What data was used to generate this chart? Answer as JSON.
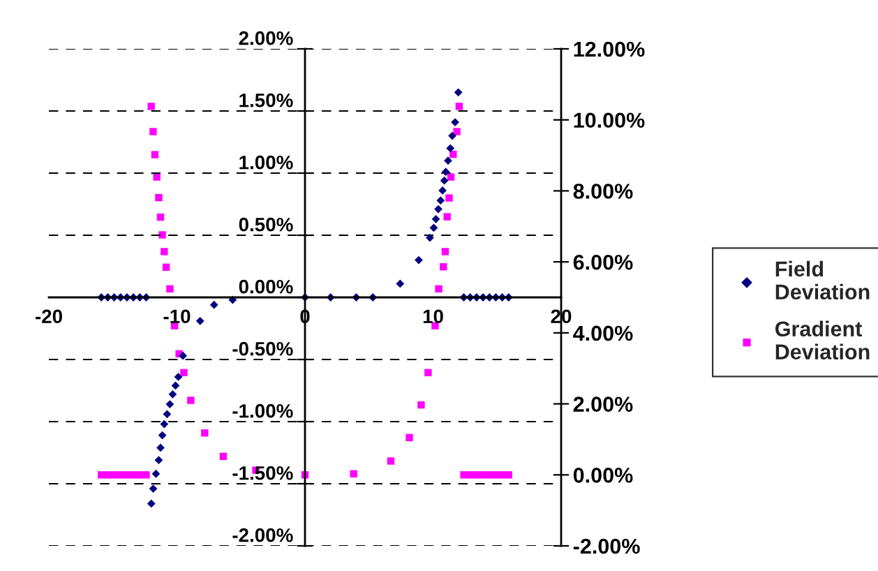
{
  "chart_data": {
    "type": "scatter",
    "xlim": [
      -20,
      20
    ],
    "xticks": [
      -20,
      -10,
      0,
      10,
      20
    ],
    "ylim": [
      -2,
      2
    ],
    "yticks": [
      {
        "value": -2,
        "label": "-2.00%"
      },
      {
        "value": -1.5,
        "label": "-1.50%"
      },
      {
        "value": -1,
        "label": "-1.00%"
      },
      {
        "value": -0.5,
        "label": "-0.50%"
      },
      {
        "value": 0,
        "label": "0.00%"
      },
      {
        "value": 0.5,
        "label": "0.50%"
      },
      {
        "value": 1,
        "label": "1.00%"
      },
      {
        "value": 1.5,
        "label": "1.50%"
      },
      {
        "value": 2,
        "label": "2.00%"
      }
    ],
    "y2lim": [
      -2,
      12
    ],
    "y2ticks": [
      {
        "value": -2,
        "label": "-2.00%"
      },
      {
        "value": 0,
        "label": "0.00%"
      },
      {
        "value": 2,
        "label": "2.00%"
      },
      {
        "value": 4,
        "label": "4.00%"
      },
      {
        "value": 6,
        "label": "6.00%"
      },
      {
        "value": 8,
        "label": "8.00%"
      },
      {
        "value": 10,
        "label": "10.00%"
      },
      {
        "value": 12,
        "label": "12.00%"
      }
    ],
    "grid": "y",
    "legend": "right",
    "series": [
      {
        "name": "Field Deviation",
        "color": "#000080",
        "marker": "diamond",
        "x": [
          -15.9,
          -15.4,
          -14.9,
          -14.4,
          -13.9,
          -13.4,
          -12.9,
          -12.4,
          -12.0,
          -11.85,
          -11.64,
          -11.42,
          -11.28,
          -11.14,
          -10.99,
          -10.77,
          -10.55,
          -10.33,
          -10.11,
          -9.89,
          -9.53,
          -8.19,
          -7.1,
          -5.65,
          0,
          2,
          4,
          5.3,
          7.43,
          8.88,
          9.75,
          10.05,
          10.22,
          10.41,
          10.59,
          10.74,
          10.88,
          10.99,
          11.17,
          11.35,
          11.5,
          11.72,
          11.97,
          12.4,
          12.9,
          13.4,
          13.9,
          14.4,
          14.9,
          15.4,
          15.9
        ],
        "values": [
          0,
          0,
          0,
          0,
          0,
          0,
          0,
          0,
          -1.66,
          -1.54,
          -1.42,
          -1.31,
          -1.21,
          -1.11,
          -1.02,
          -0.94,
          -0.86,
          -0.78,
          -0.71,
          -0.64,
          -0.47,
          -0.19,
          -0.06,
          -0.02,
          0,
          0,
          0,
          0,
          0.11,
          0.3,
          0.48,
          0.56,
          0.63,
          0.71,
          0.78,
          0.86,
          0.94,
          1.01,
          1.1,
          1.2,
          1.3,
          1.41,
          1.65,
          0,
          0,
          0,
          0,
          0,
          0,
          0,
          0
        ]
      },
      {
        "name": "Gradient Deviation",
        "color": "#ff00ff",
        "marker": "square",
        "axis": "y2",
        "x": [
          -15.9,
          -15.4,
          -14.9,
          -14.4,
          -13.9,
          -13.4,
          -12.9,
          -12.4,
          -12.01,
          -11.86,
          -11.72,
          -11.57,
          -11.42,
          -11.28,
          -11.14,
          -10.99,
          -10.84,
          -10.55,
          -10.19,
          -9.83,
          -9.46,
          -8.92,
          -7.83,
          -6.38,
          -3.84,
          0,
          3.8,
          6.7,
          8.15,
          9.07,
          9.61,
          10.16,
          10.44,
          10.81,
          10.95,
          11.1,
          11.25,
          11.39,
          11.57,
          11.86,
          12.04,
          12.4,
          12.9,
          13.4,
          13.9,
          14.4,
          14.9,
          15.4,
          15.9
        ],
        "values": [
          0,
          0,
          0,
          0,
          0,
          0,
          0,
          0,
          10.38,
          9.67,
          9.02,
          8.39,
          7.81,
          7.26,
          6.76,
          6.29,
          5.85,
          5.24,
          4.2,
          3.41,
          2.88,
          2.1,
          1.18,
          0.52,
          0.13,
          0,
          0.03,
          0.39,
          1.05,
          1.97,
          2.88,
          4.2,
          5.24,
          5.86,
          6.29,
          7.27,
          7.8,
          8.39,
          9.03,
          9.67,
          10.38,
          0,
          0,
          0,
          0,
          0,
          0,
          0,
          0
        ]
      }
    ]
  }
}
